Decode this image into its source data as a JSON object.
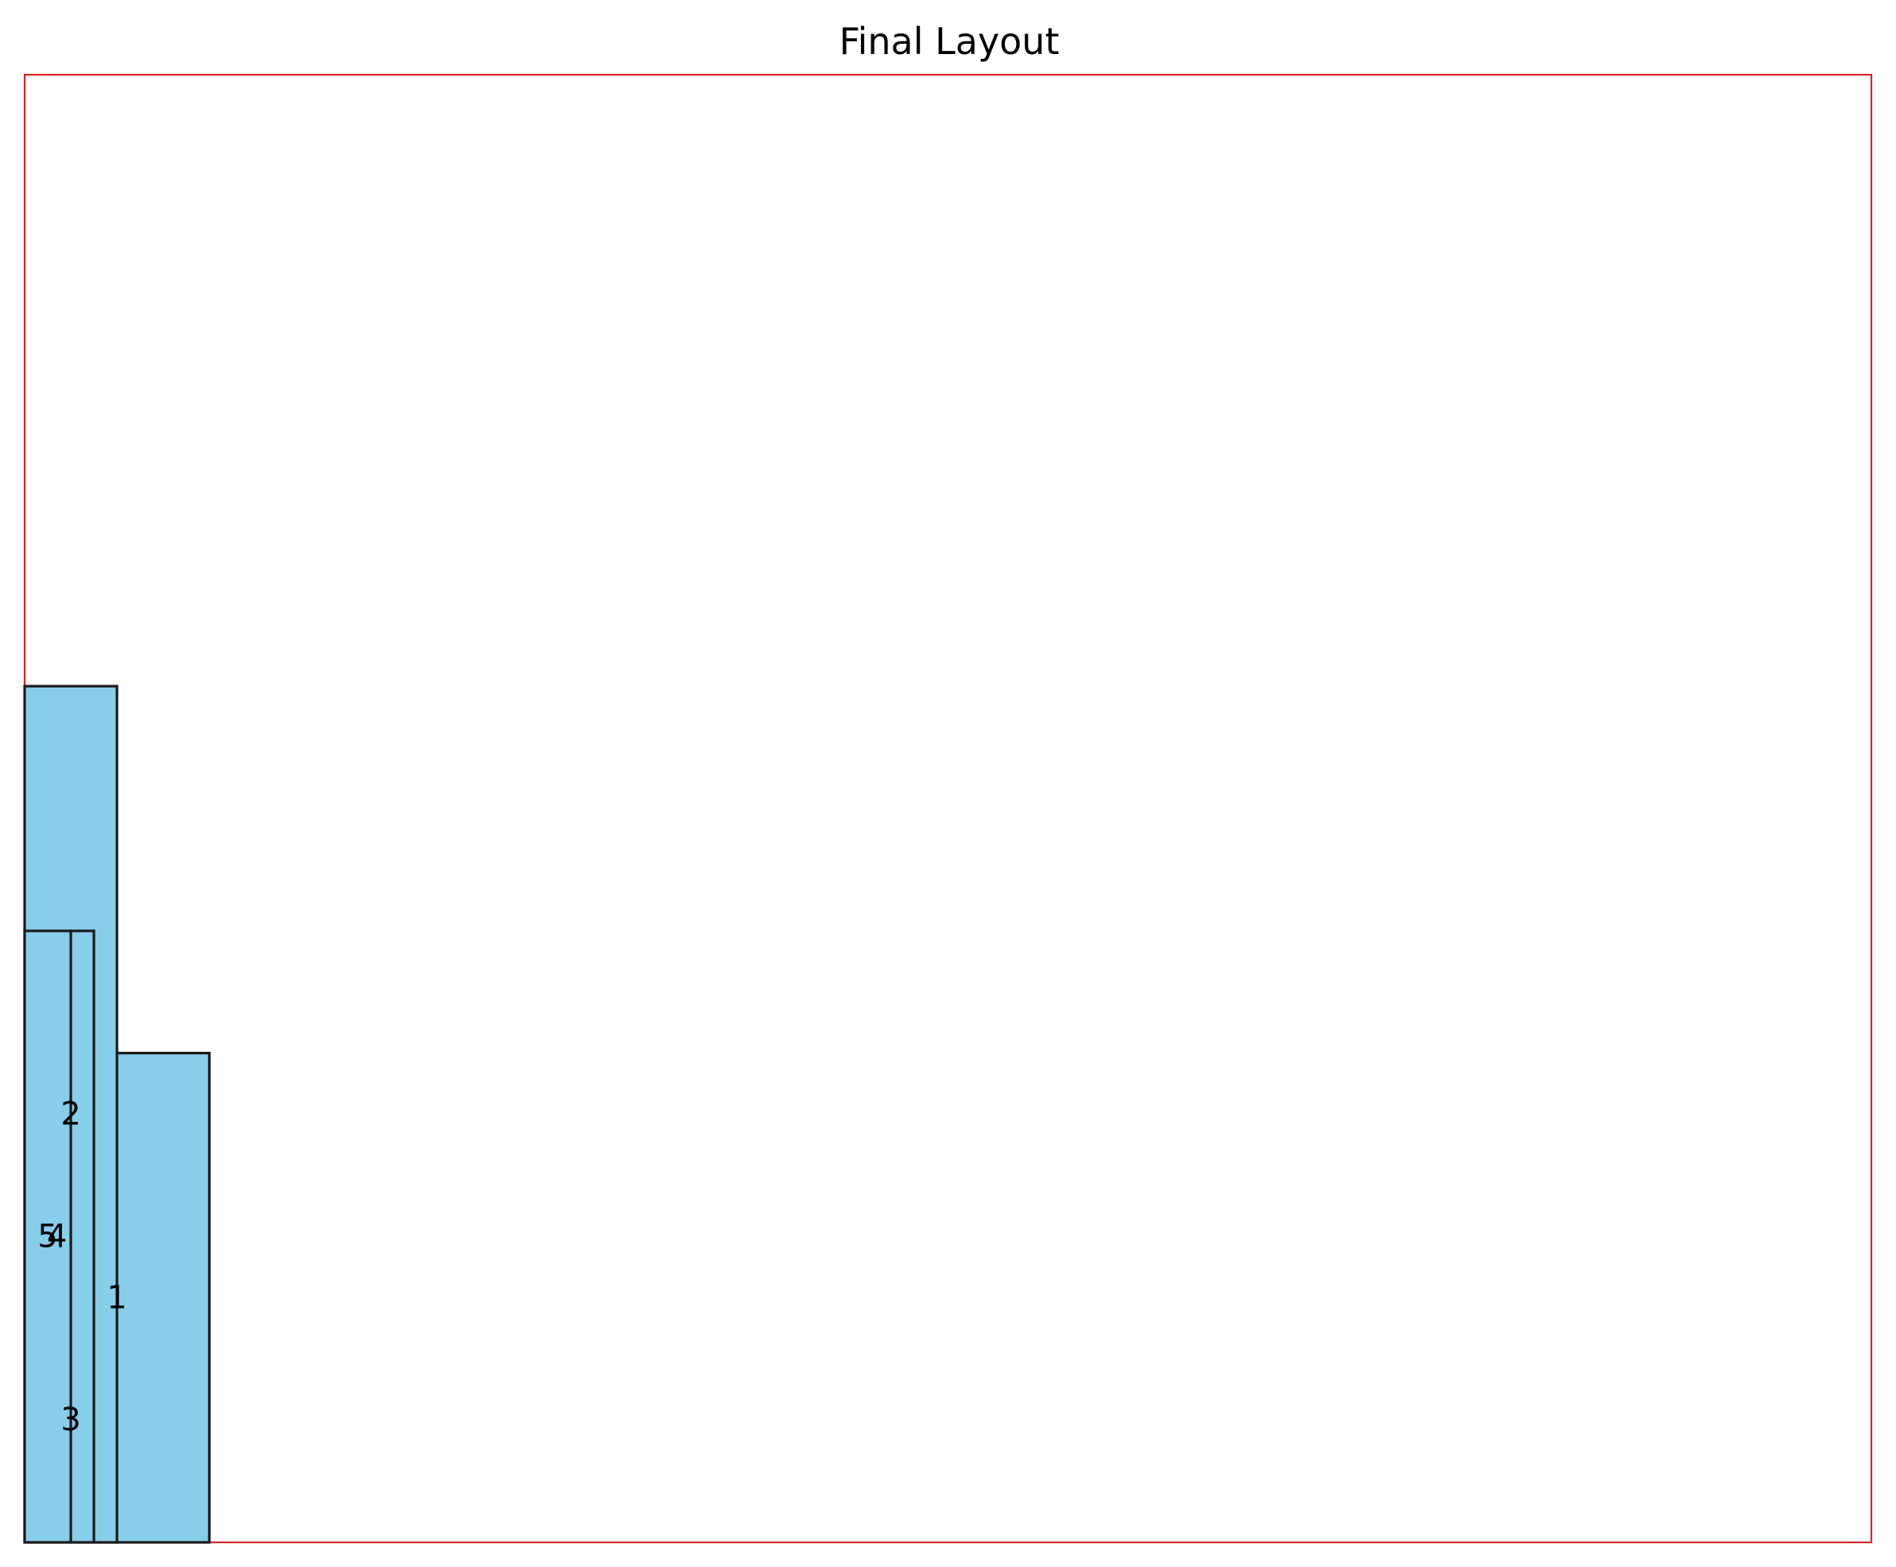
{
  "title": "Final Layout",
  "colors": {
    "container_border": "#d62728",
    "rect_fill": "#87ceeb",
    "rect_edge": "#1a1a1a"
  },
  "container": {
    "width": 100,
    "height": 80
  },
  "chart_data": {
    "type": "diagram",
    "title": "Final Layout",
    "xlim": [
      0,
      100
    ],
    "ylim": [
      0,
      80
    ],
    "rectangles": [
      {
        "label": "1",
        "x": 3.75,
        "y": 0,
        "w": 1.25,
        "h": 13.33
      },
      {
        "label": "2",
        "x": 0,
        "y": 0,
        "w": 5,
        "h": 46.67
      },
      {
        "label": "3",
        "x": 5,
        "y": 0,
        "w": 5,
        "h": 26.67
      },
      {
        "label": "4",
        "x": 0,
        "y": 0,
        "w": 2.5,
        "h": 33.33
      },
      {
        "label": "5",
        "x": 2.5,
        "y": 0,
        "w": 1.25,
        "h": 33.33
      }
    ],
    "labels": [
      {
        "text": "1",
        "x": 5,
        "y": 13.33
      },
      {
        "text": "2",
        "x": 2.5,
        "y": 23.33
      },
      {
        "text": "3",
        "x": 2.5,
        "y": 6.67
      },
      {
        "text": "4",
        "x": 1.75,
        "y": 16.67
      },
      {
        "text": "5",
        "x": 1.25,
        "y": 16.67
      }
    ]
  }
}
